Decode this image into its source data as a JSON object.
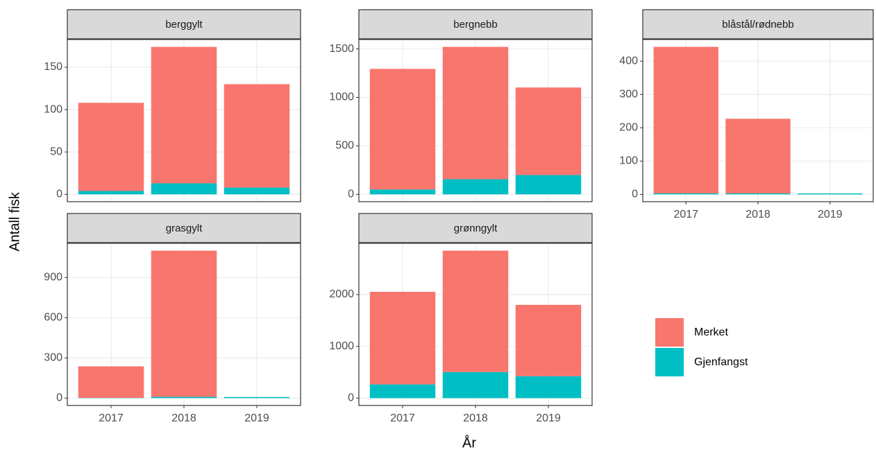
{
  "axis_labels": {
    "x": "År",
    "y": "Antall fisk"
  },
  "chart_data": [
    {
      "type": "bar",
      "title": "berggylt",
      "categories": [
        "2017",
        "2018",
        "2019"
      ],
      "series": [
        {
          "name": "Merket",
          "color": "#F8766D",
          "values": [
            104,
            161,
            122
          ]
        },
        {
          "name": "Gjenfangst",
          "color": "#00BFC4",
          "values": [
            4,
            13,
            8
          ]
        }
      ],
      "stacked": true,
      "ylim": [
        -8.7,
        182.7
      ],
      "yticks": [
        0,
        50,
        100,
        150
      ],
      "grid": true
    },
    {
      "type": "bar",
      "title": "bergnebb",
      "categories": [
        "2017",
        "2018",
        "2019"
      ],
      "series": [
        {
          "name": "Merket",
          "color": "#F8766D",
          "values": [
            1244,
            1365,
            903
          ]
        },
        {
          "name": "Gjenfangst",
          "color": "#00BFC4",
          "values": [
            50,
            156,
            199
          ]
        }
      ],
      "stacked": true,
      "ylim": [
        -76,
        1597
      ],
      "yticks": [
        0,
        500,
        1000,
        1500
      ],
      "grid": true
    },
    {
      "type": "bar",
      "title": "blåstål/rødnebb",
      "categories": [
        "2017",
        "2018",
        "2019"
      ],
      "series": [
        {
          "name": "Merket",
          "color": "#F8766D",
          "values": [
            440,
            224,
            0
          ]
        },
        {
          "name": "Gjenfangst",
          "color": "#00BFC4",
          "values": [
            3,
            3,
            3
          ]
        }
      ],
      "stacked": true,
      "ylim": [
        -22,
        465
      ],
      "yticks": [
        0,
        100,
        200,
        300,
        400
      ],
      "grid": true
    },
    {
      "type": "bar",
      "title": "grasgylt",
      "categories": [
        "2017",
        "2018",
        "2019"
      ],
      "series": [
        {
          "name": "Merket",
          "color": "#F8766D",
          "values": [
            235,
            1090,
            0
          ]
        },
        {
          "name": "Gjenfangst",
          "color": "#00BFC4",
          "values": [
            2,
            10,
            8
          ]
        }
      ],
      "stacked": true,
      "ylim": [
        -55,
        1155
      ],
      "yticks": [
        0,
        300,
        600,
        900
      ],
      "grid": true
    },
    {
      "type": "bar",
      "title": "grønngylt",
      "categories": [
        "2017",
        "2018",
        "2019"
      ],
      "series": [
        {
          "name": "Merket",
          "color": "#F8766D",
          "values": [
            1788,
            2345,
            1377
          ]
        },
        {
          "name": "Gjenfangst",
          "color": "#00BFC4",
          "values": [
            265,
            503,
            424
          ]
        }
      ],
      "stacked": true,
      "ylim": [
        -142,
        2990
      ],
      "yticks": [
        0,
        1000,
        2000
      ],
      "grid": true
    }
  ]
}
